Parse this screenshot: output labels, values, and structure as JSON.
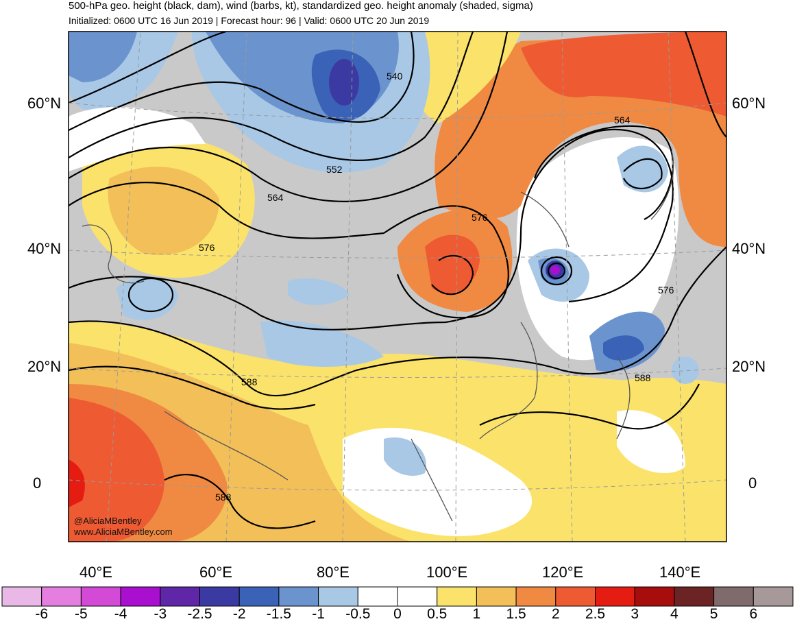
{
  "header": {
    "title": "500-hPa geo. height (black, dam), wind (barbs, kt), standardized geo. height anomaly (shaded, sigma)",
    "subtitle": "Initialized: 0600 UTC 16 Jun 2019 | Forecast hour: 96 | Valid: 0600 UTC 20 Jun 2019"
  },
  "map": {
    "lat_labels": [
      "60°N",
      "40°N",
      "20°N",
      "0"
    ],
    "lon_labels": [
      "40°E",
      "60°E",
      "80°E",
      "100°E",
      "120°E",
      "140°E"
    ],
    "contour_labels": [
      "540",
      "552",
      "564",
      "576",
      "588",
      "564",
      "576",
      "576",
      "588",
      "588"
    ],
    "credit_handle": "@AliciaMBentley",
    "credit_url": "www.AliciaMBentley.com"
  },
  "colorbar": {
    "labels": [
      "-6",
      "-5",
      "-4",
      "-3",
      "-2.5",
      "-2",
      "-1.5",
      "-1",
      "-0.5",
      "0",
      "0.5",
      "1",
      "1.5",
      "2",
      "2.5",
      "3",
      "4",
      "5",
      "6"
    ],
    "colors": [
      "#e9b8e6",
      "#e47fe0",
      "#d34ad6",
      "#a90fcf",
      "#5f26a8",
      "#3b3aa3",
      "#3a63b8",
      "#6b94cf",
      "#a8c8e6",
      "#ffffff",
      "#ffffff",
      "#fbe36b",
      "#f3bf58",
      "#f08a42",
      "#ee5a32",
      "#e51c12",
      "#a80d0d",
      "#6b2323",
      "#7f6b6b",
      "#a79999"
    ]
  }
}
